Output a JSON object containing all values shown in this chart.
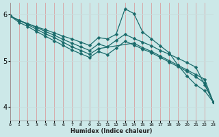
{
  "xlabel": "Humidex (Indice chaleur)",
  "bg_color": "#cce8e8",
  "grid_color": "#b0d8d8",
  "line_color": "#1a6b6b",
  "xlim": [
    0,
    23
  ],
  "ylim": [
    3.7,
    6.25
  ],
  "yticks": [
    4,
    5,
    6
  ],
  "xticks": [
    0,
    1,
    2,
    3,
    4,
    5,
    6,
    7,
    8,
    9,
    10,
    11,
    12,
    13,
    14,
    15,
    16,
    17,
    18,
    19,
    20,
    21,
    22,
    23
  ],
  "series": [
    {
      "x": [
        0,
        1,
        2,
        3,
        4,
        5,
        6,
        7,
        8,
        9,
        10,
        11,
        12,
        13,
        14,
        15,
        16,
        17,
        18,
        19,
        20,
        21,
        22,
        23
      ],
      "y": [
        5.97,
        5.87,
        5.8,
        5.73,
        5.67,
        5.6,
        5.53,
        5.47,
        5.4,
        5.33,
        5.5,
        5.47,
        5.57,
        6.12,
        6.02,
        5.62,
        5.47,
        5.32,
        5.17,
        4.9,
        4.67,
        4.48,
        4.35,
        4.1
      ]
    },
    {
      "x": [
        0,
        1,
        2,
        3,
        4,
        5,
        6,
        7,
        8,
        9,
        10,
        11,
        12,
        13,
        14,
        15,
        16,
        17,
        18,
        19,
        20,
        21,
        22,
        23
      ],
      "y": [
        5.97,
        5.87,
        5.8,
        5.72,
        5.63,
        5.55,
        5.46,
        5.38,
        5.3,
        5.22,
        5.36,
        5.3,
        5.44,
        5.57,
        5.48,
        5.4,
        5.32,
        5.22,
        5.14,
        5.05,
        4.96,
        4.86,
        4.48,
        4.1
      ]
    },
    {
      "x": [
        0,
        2,
        3,
        4,
        5,
        6,
        7,
        8,
        9,
        10,
        14,
        15,
        16,
        17,
        18,
        19,
        20,
        21,
        22,
        23
      ],
      "y": [
        5.97,
        5.78,
        5.68,
        5.58,
        5.5,
        5.4,
        5.3,
        5.22,
        5.14,
        5.26,
        5.38,
        5.28,
        5.2,
        5.1,
        5.0,
        4.9,
        4.8,
        4.7,
        4.6,
        4.1
      ]
    },
    {
      "x": [
        0,
        1,
        2,
        3,
        4,
        5,
        6,
        7,
        8,
        9,
        10,
        11,
        12,
        13,
        14,
        15,
        16,
        17,
        18,
        19,
        20,
        21,
        22,
        23
      ],
      "y": [
        5.97,
        5.83,
        5.74,
        5.63,
        5.53,
        5.43,
        5.33,
        5.23,
        5.15,
        5.07,
        5.2,
        5.13,
        5.27,
        5.42,
        5.34,
        5.25,
        5.17,
        5.07,
        4.97,
        4.87,
        4.77,
        4.65,
        4.52,
        4.1
      ]
    }
  ],
  "marker": "D",
  "marker_size": 2.5,
  "linewidth": 0.9
}
